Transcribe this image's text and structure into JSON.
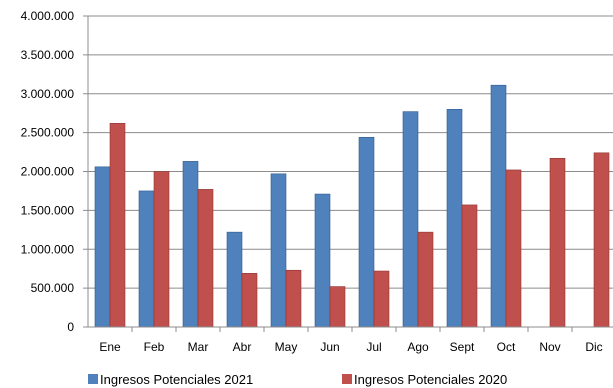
{
  "chart_data": {
    "type": "bar",
    "categories": [
      "Ene",
      "Feb",
      "Mar",
      "Abr",
      "May",
      "Jun",
      "Jul",
      "Ago",
      "Sept",
      "Oct",
      "Nov",
      "Dic"
    ],
    "series": [
      {
        "name": "Ingresos Potenciales 2021",
        "color": "#4F81BD",
        "values": [
          2060000,
          1750000,
          2130000,
          1220000,
          1970000,
          1710000,
          2440000,
          2770000,
          2800000,
          3110000,
          null,
          null
        ]
      },
      {
        "name": "Ingresos Potenciales 2020",
        "color": "#C0504D",
        "values": [
          2620000,
          2000000,
          1770000,
          690000,
          730000,
          520000,
          720000,
          1220000,
          1570000,
          2020000,
          2170000,
          2240000
        ]
      }
    ],
    "y_ticks": [
      "0",
      "500.000",
      "1.000.000",
      "1.500.000",
      "2.000.000",
      "2.500.000",
      "3.000.000",
      "3.500.000",
      "4.000.000"
    ],
    "ylim": [
      0,
      4000000
    ],
    "grid": true,
    "legend_position": "bottom"
  }
}
